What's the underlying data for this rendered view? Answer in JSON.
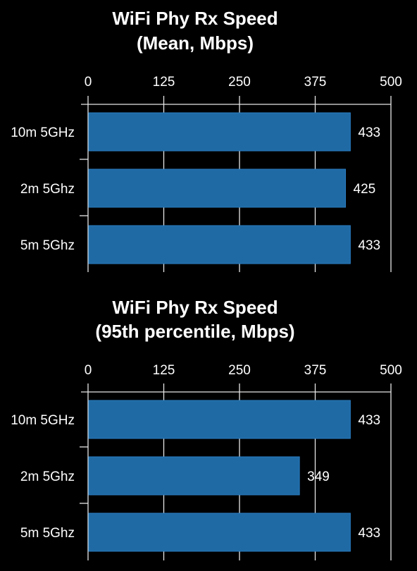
{
  "chart_data": [
    {
      "type": "bar",
      "orientation": "horizontal",
      "title_lines": [
        "WiFi Phy Rx Speed",
        "(Mean, Mbps)"
      ],
      "categories": [
        "10m 5GHz",
        "2m 5Ghz",
        "5m 5Ghz"
      ],
      "values": [
        433,
        425,
        433
      ],
      "value_labels": [
        "433",
        "425",
        "433"
      ],
      "xlim": [
        0,
        500
      ],
      "xticks": [
        "0",
        "125",
        "250",
        "375",
        "500"
      ],
      "tick_values": [
        0,
        125,
        250,
        375,
        500
      ],
      "xlabel": "",
      "ylabel": "",
      "grid": true,
      "bar_color": "#1f6aa5",
      "background": "#000000"
    },
    {
      "type": "bar",
      "orientation": "horizontal",
      "title_lines": [
        "WiFi Phy Rx Speed",
        "(95th percentile, Mbps)"
      ],
      "categories": [
        "10m 5GHz",
        "2m 5Ghz",
        "5m 5Ghz"
      ],
      "values": [
        433,
        349,
        433
      ],
      "value_labels": [
        "433",
        "349",
        "433"
      ],
      "xlim": [
        0,
        500
      ],
      "xticks": [
        "0",
        "125",
        "250",
        "375",
        "500"
      ],
      "tick_values": [
        0,
        125,
        250,
        375,
        500
      ],
      "xlabel": "",
      "ylabel": "",
      "grid": true,
      "bar_color": "#1f6aa5",
      "background": "#000000"
    }
  ]
}
